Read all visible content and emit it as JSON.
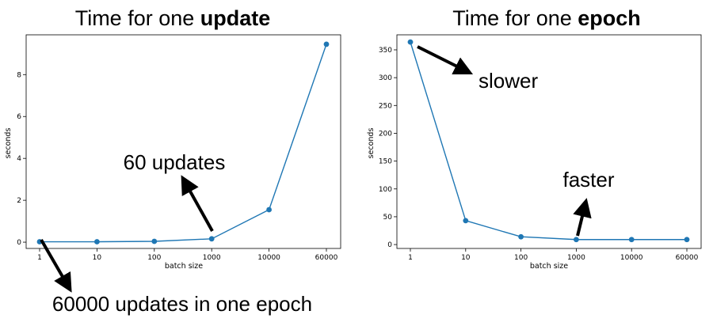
{
  "chart_data": [
    {
      "type": "line",
      "title_plain": "Time for one ",
      "title_bold": "update",
      "xlabel": "batch size",
      "ylabel": "seconds",
      "x_scale": "categorical",
      "categories": [
        "1",
        "10",
        "100",
        "1000",
        "10000",
        "60000"
      ],
      "series": [
        {
          "values": [
            0.02,
            0.02,
            0.04,
            0.16,
            1.55,
            9.45
          ],
          "color": "#1f77b4"
        }
      ],
      "ylim": [
        -0.3,
        9.9
      ],
      "yticks": [
        0,
        2,
        4,
        6,
        8
      ],
      "grid": false,
      "annotations": [
        {
          "text": "60 updates",
          "arrow_from_category": "1000",
          "arrow_from_value": 0.16,
          "direction": "up-left"
        },
        {
          "text": "60000 updates in one epoch",
          "arrow_from_category": "1",
          "arrow_from_value": 0.02,
          "direction": "down-right"
        }
      ]
    },
    {
      "type": "line",
      "title_plain": "Time for one ",
      "title_bold": "epoch",
      "xlabel": "batch size",
      "ylabel": "seconds",
      "x_scale": "categorical",
      "categories": [
        "1",
        "10",
        "100",
        "1000",
        "10000",
        "60000"
      ],
      "series": [
        {
          "values": [
            364,
            43,
            14,
            9,
            9,
            9
          ],
          "color": "#1f77b4"
        }
      ],
      "ylim": [
        -7,
        377
      ],
      "yticks": [
        0,
        50,
        100,
        150,
        200,
        250,
        300,
        350
      ],
      "grid": false,
      "annotations": [
        {
          "text": "slower",
          "arrow_from_category": "1",
          "arrow_from_value": 364,
          "direction": "down-right"
        },
        {
          "text": "faster",
          "arrow_from_category": "1000",
          "arrow_from_value": 9,
          "direction": "up"
        }
      ]
    }
  ]
}
